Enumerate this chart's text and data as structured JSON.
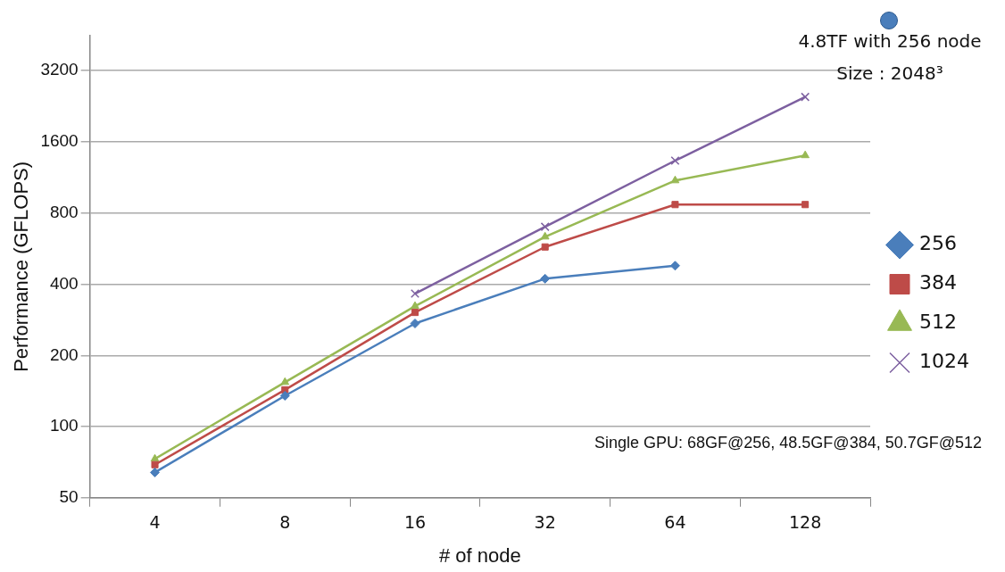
{
  "chart_data": {
    "type": "line",
    "xlabel": "# of node",
    "ylabel": "Performance (GFLOPS)",
    "categories": [
      "4",
      "8",
      "16",
      "32",
      "64",
      "128"
    ],
    "series": [
      {
        "name": "256",
        "color": "#4a7ebb",
        "marker": "diamond",
        "values": [
          64,
          135,
          273,
          422,
          479,
          null
        ]
      },
      {
        "name": "384",
        "color": "#be4b48",
        "marker": "square",
        "values": [
          69,
          143,
          304,
          575,
          869,
          869
        ]
      },
      {
        "name": "512",
        "color": "#98b954",
        "marker": "triangle",
        "values": [
          73,
          154,
          323,
          635,
          1098,
          1402
        ]
      },
      {
        "name": "1024",
        "color": "#7d60a0",
        "marker": "cross",
        "values": [
          null,
          null,
          365,
          700,
          1333,
          2479
        ]
      }
    ],
    "log": "y",
    "ylim": [
      50,
      4500
    ],
    "yticks": [
      50,
      100,
      200,
      400,
      800,
      1600,
      3200
    ],
    "grid": "y",
    "legend": "right",
    "annotations": [
      "4.8TF with 256 node",
      "Size : 2048³",
      "Single GPU: 68GF@256, 48.5GF@384, 50.7GF@512"
    ]
  }
}
